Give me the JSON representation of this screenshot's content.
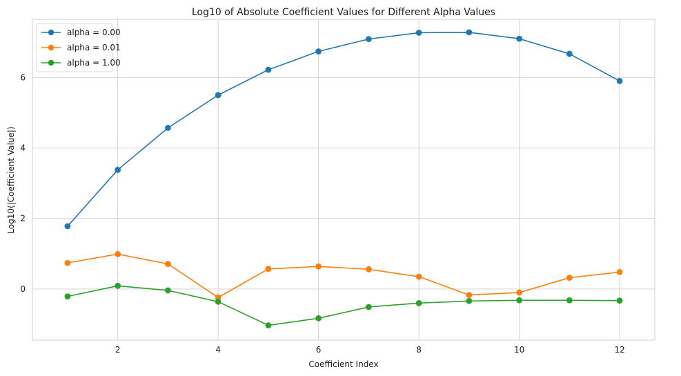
{
  "chart_data": {
    "type": "line",
    "title": "Log10 of Absolute Coefficient Values for Different Alpha Values",
    "xlabel": "Coefficient Index",
    "ylabel": "Log10(|Coefficient Value|)",
    "x": [
      1,
      2,
      3,
      4,
      5,
      6,
      7,
      8,
      9,
      10,
      11,
      12
    ],
    "xlim": [
      0.3,
      12.7
    ],
    "ylim": [
      -1.45,
      7.65
    ],
    "xticks": [
      "2",
      "4",
      "6",
      "8",
      "10",
      "12"
    ],
    "yticks": [
      "0",
      "2",
      "4",
      "6"
    ],
    "grid": true,
    "legend_position": "top-left",
    "series": [
      {
        "name": "alpha = 0.00",
        "color": "#1f77b4",
        "values": [
          1.78,
          3.38,
          4.57,
          5.5,
          6.22,
          6.74,
          7.09,
          7.27,
          7.28,
          7.1,
          6.67,
          5.9
        ]
      },
      {
        "name": "alpha = 0.01",
        "color": "#ff7f0e",
        "values": [
          0.74,
          0.99,
          0.71,
          -0.24,
          0.57,
          0.64,
          0.56,
          0.35,
          -0.17,
          -0.1,
          0.32,
          0.48
        ]
      },
      {
        "name": "alpha = 1.00",
        "color": "#2ca02c",
        "values": [
          -0.21,
          0.09,
          -0.04,
          -0.36,
          -1.03,
          -0.83,
          -0.51,
          -0.4,
          -0.34,
          -0.32,
          -0.32,
          -0.33
        ]
      }
    ]
  }
}
